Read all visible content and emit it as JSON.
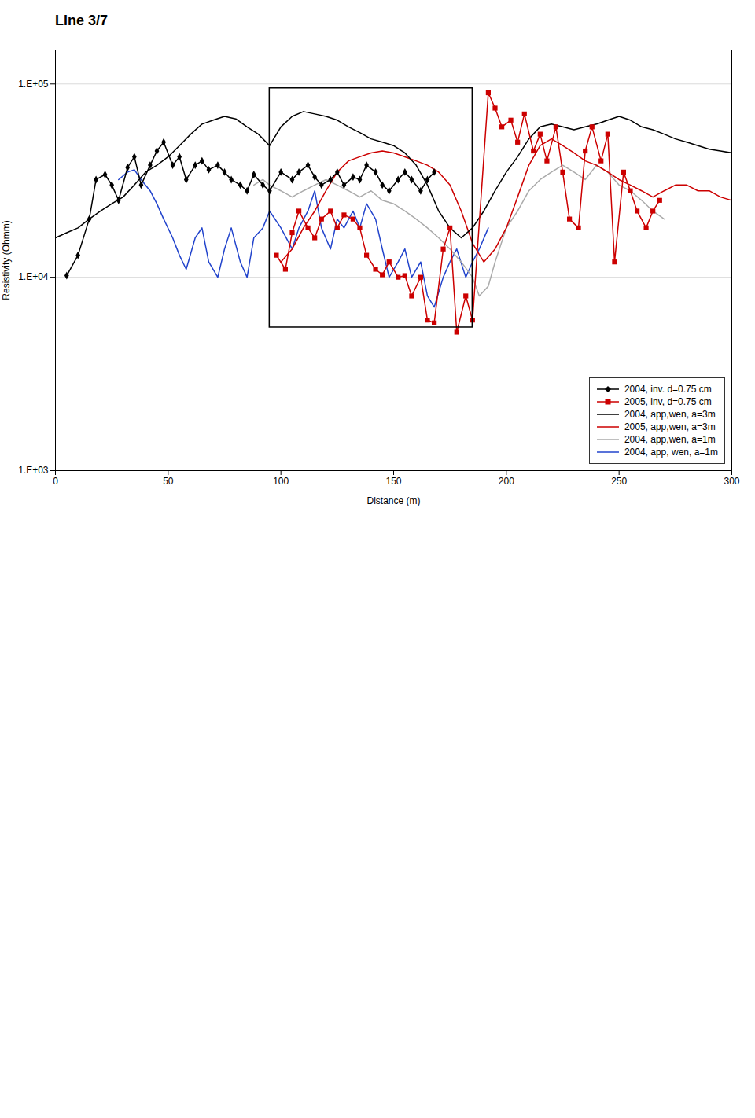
{
  "chart_data": {
    "type": "line",
    "title": "Line 3/7",
    "xlabel": "Distance (m)",
    "ylabel": "Resistivity (Ohmm)",
    "log": "y",
    "grid": true,
    "legend": "lower right",
    "xlim": [
      0,
      300
    ],
    "xticks": [
      0,
      50,
      100,
      150,
      200,
      250,
      300
    ],
    "ylim": [
      1000,
      150000
    ],
    "yticks": [
      {
        "value": 1000,
        "label": "1.E+03"
      },
      {
        "value": 10000,
        "label": "1.E+04"
      },
      {
        "value": 100000,
        "label": "1.E+05"
      }
    ],
    "annotations": [
      {
        "type": "rect",
        "x": [
          95,
          185
        ],
        "y": [
          5500,
          95000
        ]
      }
    ],
    "series": [
      {
        "name": "2004, inv. d=0.75 cm",
        "color": "black",
        "marker": "diamond",
        "x": [
          5,
          10,
          15,
          18,
          22,
          25,
          28,
          32,
          35,
          38,
          42,
          45,
          48,
          52,
          55,
          58,
          62,
          65,
          68,
          72,
          75,
          78,
          82,
          85,
          88,
          92,
          95,
          100,
          105,
          108,
          112,
          115,
          118,
          122,
          125,
          128,
          132,
          135,
          138,
          142,
          145,
          148,
          152,
          155,
          158,
          162,
          165,
          168
        ],
        "values": [
          10200,
          13000,
          20000,
          32000,
          34000,
          30000,
          25000,
          37000,
          42000,
          30000,
          38000,
          45000,
          50000,
          38000,
          42000,
          32000,
          38000,
          40000,
          36000,
          38000,
          35000,
          32000,
          30000,
          28000,
          34000,
          30000,
          28000,
          35000,
          32000,
          35000,
          38000,
          33000,
          30000,
          32000,
          35000,
          30000,
          33000,
          32000,
          38000,
          35000,
          30000,
          28000,
          32000,
          35000,
          32000,
          28000,
          32000,
          35000
        ]
      },
      {
        "name": "2005, inv, d=0.75 cm",
        "color": "#cc0000",
        "marker": "square",
        "x": [
          98,
          102,
          105,
          108,
          112,
          115,
          118,
          122,
          125,
          128,
          132,
          135,
          138,
          142,
          145,
          148,
          152,
          155,
          158,
          162,
          165,
          168,
          172,
          175,
          178,
          182,
          185,
          192,
          195,
          198,
          202,
          205,
          208,
          212,
          215,
          218,
          222,
          225,
          228,
          232,
          235,
          238,
          242,
          245,
          248,
          252,
          255,
          258,
          262,
          265,
          268
        ],
        "values": [
          13000,
          11000,
          17000,
          22000,
          18000,
          16000,
          20000,
          22000,
          18000,
          21000,
          20000,
          18000,
          13000,
          11000,
          10300,
          12000,
          10000,
          10200,
          8000,
          10000,
          6000,
          5800,
          14000,
          18000,
          5200,
          8000,
          6000,
          90000,
          75000,
          60000,
          65000,
          50000,
          70000,
          45000,
          55000,
          40000,
          60000,
          35000,
          20000,
          18000,
          45000,
          60000,
          40000,
          55000,
          12000,
          35000,
          28000,
          22000,
          18000,
          22000,
          25000
        ]
      },
      {
        "name": "2004, app,wen, a=3m",
        "color": "black",
        "x": [
          0,
          5,
          10,
          15,
          20,
          25,
          30,
          35,
          40,
          45,
          50,
          55,
          60,
          65,
          70,
          75,
          80,
          85,
          90,
          95,
          100,
          105,
          110,
          115,
          120,
          125,
          130,
          135,
          140,
          145,
          150,
          155,
          160,
          165,
          170,
          175,
          180,
          185,
          190,
          195,
          200,
          205,
          210,
          215,
          220,
          225,
          230,
          235,
          240,
          245,
          250,
          255,
          260,
          265,
          270,
          275,
          280,
          285,
          290,
          295,
          300
        ],
        "values": [
          16000,
          17000,
          18000,
          20000,
          22000,
          24000,
          26000,
          30000,
          35000,
          38000,
          42000,
          48000,
          55000,
          62000,
          65000,
          68000,
          66000,
          60000,
          55000,
          48000,
          60000,
          68000,
          72000,
          70000,
          68000,
          65000,
          60000,
          56000,
          52000,
          50000,
          48000,
          44000,
          38000,
          30000,
          22000,
          18000,
          16000,
          18000,
          22000,
          28000,
          35000,
          42000,
          52000,
          60000,
          62000,
          60000,
          58000,
          60000,
          62000,
          65000,
          68000,
          65000,
          60000,
          58000,
          55000,
          52000,
          50000,
          48000,
          46000,
          45000,
          44000
        ]
      },
      {
        "name": "2005, app,wen, a=3m",
        "color": "#cc0000",
        "x": [
          100,
          105,
          110,
          115,
          120,
          125,
          130,
          135,
          140,
          145,
          150,
          155,
          160,
          165,
          170,
          175,
          180,
          185,
          190,
          195,
          200,
          205,
          210,
          215,
          220,
          225,
          230,
          235,
          240,
          245,
          250,
          255,
          260,
          265,
          270,
          275,
          280,
          285,
          290,
          295,
          300
        ],
        "values": [
          12000,
          14000,
          18000,
          22000,
          28000,
          35000,
          40000,
          42000,
          44000,
          45000,
          44000,
          42000,
          40000,
          38000,
          35000,
          30000,
          22000,
          15000,
          12000,
          14000,
          18000,
          26000,
          38000,
          48000,
          52000,
          48000,
          44000,
          40000,
          38000,
          35000,
          32000,
          30000,
          28000,
          26000,
          28000,
          30000,
          30000,
          28000,
          28000,
          26000,
          25000
        ]
      },
      {
        "name": "2004, app,wen, a=1m",
        "color": "#aaaaaa",
        "x": [
          88,
          92,
          95,
          100,
          105,
          110,
          115,
          120,
          125,
          130,
          135,
          140,
          145,
          150,
          155,
          160,
          165,
          170,
          175,
          180,
          185,
          188,
          192,
          195,
          200,
          205,
          210,
          215,
          220,
          225,
          230,
          235,
          240,
          245,
          250,
          255,
          260,
          265,
          270
        ],
        "values": [
          30000,
          32000,
          30000,
          28000,
          26000,
          28000,
          30000,
          32000,
          30000,
          28000,
          26000,
          28000,
          25000,
          24000,
          22000,
          20000,
          18000,
          16000,
          14000,
          12000,
          10000,
          8000,
          9000,
          12000,
          18000,
          22000,
          28000,
          32000,
          35000,
          38000,
          35000,
          32000,
          38000,
          35000,
          30000,
          28000,
          25000,
          22000,
          20000
        ]
      },
      {
        "name": "2004, app, wen, a=1m",
        "color": "#2244cc",
        "x": [
          28,
          32,
          35,
          38,
          42,
          45,
          48,
          52,
          55,
          58,
          62,
          65,
          68,
          72,
          75,
          78,
          82,
          85,
          88,
          92,
          95,
          100,
          105,
          108,
          112,
          115,
          118,
          122,
          125,
          128,
          132,
          135,
          138,
          142,
          145,
          148,
          152,
          155,
          158,
          162,
          165,
          168,
          172,
          175,
          178,
          182,
          185,
          188,
          192
        ],
        "values": [
          32000,
          35000,
          36000,
          32000,
          28000,
          24000,
          20000,
          16000,
          13000,
          11000,
          16000,
          18000,
          12000,
          10000,
          14000,
          18000,
          12000,
          10000,
          16000,
          18000,
          22000,
          18000,
          14000,
          18000,
          22000,
          28000,
          18000,
          14000,
          20000,
          18000,
          22000,
          18000,
          24000,
          20000,
          14000,
          10000,
          12000,
          14000,
          10000,
          12000,
          8000,
          7000,
          10000,
          12000,
          14000,
          10000,
          12000,
          14000,
          18000
        ]
      }
    ]
  }
}
